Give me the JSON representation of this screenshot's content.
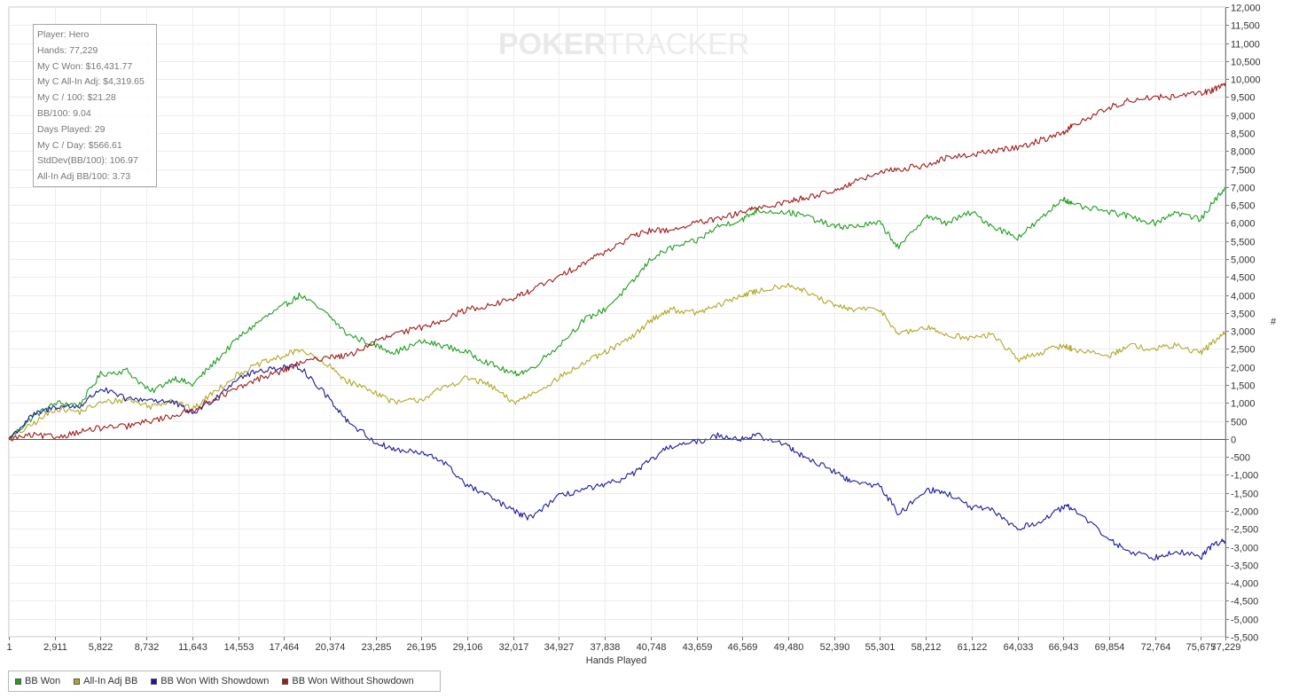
{
  "stats": [
    "Player: Hero",
    "Hands: 77,229",
    "My C Won: $16,431.77",
    "My C All-In Adj: $4,319.65",
    "My C / 100: $21.28",
    "BB/100: 9.04",
    "Days Played: 29",
    "My C / Day: $566.61",
    "StdDev(BB/100): 106.97",
    "All-In Adj BB/100: 3.73"
  ],
  "watermark": {
    "bold": "POKER",
    "light": "TRACKER"
  },
  "chart_data": {
    "type": "line",
    "title": "",
    "xlabel": "Hands Played",
    "ylabel": "#",
    "xlim": [
      1,
      77229
    ],
    "ylim": [
      -5500,
      12000
    ],
    "grid": true,
    "legend_placement": "bottom-left",
    "x_ticks": [
      1,
      2911,
      5822,
      8732,
      11643,
      14553,
      17464,
      20374,
      23285,
      26195,
      29106,
      32017,
      34927,
      37838,
      40748,
      43659,
      46569,
      49480,
      52390,
      55301,
      58212,
      61122,
      64033,
      66943,
      69854,
      72764,
      75675,
      77229
    ],
    "x_tick_labels": [
      "1",
      "2,911",
      "5,822",
      "8,732",
      "11,643",
      "14,553",
      "17,464",
      "20,374",
      "23,285",
      "26,195",
      "29,106",
      "32,017",
      "34,927",
      "37,838",
      "40,748",
      "43,659",
      "46,569",
      "49,480",
      "52,390",
      "55,301",
      "58,212",
      "61,122",
      "64,033",
      "66,943",
      "69,854",
      "72,764",
      "75,675",
      "77,229"
    ],
    "y_ticks": [
      12000,
      11500,
      11000,
      10500,
      10000,
      9500,
      9000,
      8500,
      8000,
      7500,
      7000,
      6500,
      6000,
      5500,
      5000,
      4500,
      4000,
      3500,
      3000,
      2500,
      2000,
      1500,
      1000,
      500,
      0,
      -500,
      -1000,
      -1500,
      -2000,
      -2500,
      -3000,
      -3500,
      -4000,
      -4500,
      -5000,
      -5500
    ],
    "y_tick_labels": [
      "12,000",
      "11,500",
      "11,000",
      "10,500",
      "10,000",
      "9,500",
      "9,000",
      "8,500",
      "8,000",
      "7,500",
      "7,000",
      "6,500",
      "6,000",
      "5,500",
      "5,000",
      "4,500",
      "4,000",
      "3,500",
      "3,000",
      "2,500",
      "2,000",
      "1,500",
      "1,000",
      "500",
      "0",
      "-500",
      "-1,000",
      "-1,500",
      "-2,000",
      "-2,500",
      "-3,000",
      "-3,500",
      "-4,000",
      "-4,500",
      "-5,000",
      "-5,500"
    ],
    "series": [
      {
        "name": "BB Won",
        "color": "#1f9e1f",
        "points": [
          [
            1,
            0
          ],
          [
            1500,
            600
          ],
          [
            3000,
            1000
          ],
          [
            4500,
            950
          ],
          [
            5822,
            1800
          ],
          [
            7500,
            1900
          ],
          [
            9000,
            1300
          ],
          [
            10500,
            1700
          ],
          [
            11643,
            1500
          ],
          [
            13000,
            2100
          ],
          [
            14553,
            2800
          ],
          [
            16000,
            3300
          ],
          [
            17464,
            3700
          ],
          [
            18500,
            4000
          ],
          [
            20374,
            3400
          ],
          [
            21500,
            2900
          ],
          [
            23285,
            2600
          ],
          [
            24500,
            2400
          ],
          [
            26195,
            2700
          ],
          [
            27500,
            2600
          ],
          [
            29106,
            2400
          ],
          [
            30500,
            2100
          ],
          [
            32017,
            1800
          ],
          [
            33000,
            1900
          ],
          [
            34927,
            2600
          ],
          [
            36500,
            3300
          ],
          [
            37838,
            3600
          ],
          [
            39500,
            4300
          ],
          [
            40748,
            5000
          ],
          [
            42000,
            5300
          ],
          [
            43659,
            5500
          ],
          [
            45000,
            5900
          ],
          [
            46569,
            6100
          ],
          [
            47500,
            6350
          ],
          [
            49480,
            6300
          ],
          [
            50500,
            6200
          ],
          [
            52390,
            5900
          ],
          [
            53500,
            5900
          ],
          [
            55301,
            6000
          ],
          [
            56500,
            5300
          ],
          [
            58212,
            6200
          ],
          [
            59500,
            6000
          ],
          [
            61122,
            6300
          ],
          [
            62500,
            5900
          ],
          [
            64033,
            5600
          ],
          [
            65500,
            6100
          ],
          [
            66943,
            6700
          ],
          [
            67500,
            6500
          ],
          [
            69854,
            6300
          ],
          [
            71000,
            6200
          ],
          [
            72764,
            6000
          ],
          [
            74000,
            6300
          ],
          [
            75675,
            6100
          ],
          [
            76500,
            6600
          ],
          [
            77229,
            7000
          ]
        ]
      },
      {
        "name": "All-In Adj BB",
        "color": "#b0a82a",
        "points": [
          [
            1,
            0
          ],
          [
            1500,
            400
          ],
          [
            3000,
            850
          ],
          [
            4500,
            750
          ],
          [
            5822,
            1000
          ],
          [
            7500,
            1100
          ],
          [
            9000,
            900
          ],
          [
            10500,
            1100
          ],
          [
            11643,
            800
          ],
          [
            13000,
            1300
          ],
          [
            14553,
            1800
          ],
          [
            16000,
            2100
          ],
          [
            17464,
            2300
          ],
          [
            18500,
            2500
          ],
          [
            20374,
            2000
          ],
          [
            21500,
            1600
          ],
          [
            23285,
            1300
          ],
          [
            24500,
            1000
          ],
          [
            26195,
            1100
          ],
          [
            27500,
            1400
          ],
          [
            29106,
            1700
          ],
          [
            30500,
            1500
          ],
          [
            32017,
            1000
          ],
          [
            33000,
            1200
          ],
          [
            34927,
            1700
          ],
          [
            36500,
            2100
          ],
          [
            37838,
            2400
          ],
          [
            39500,
            2800
          ],
          [
            40748,
            3300
          ],
          [
            42000,
            3600
          ],
          [
            43659,
            3500
          ],
          [
            45000,
            3700
          ],
          [
            46569,
            4000
          ],
          [
            47500,
            4100
          ],
          [
            49480,
            4300
          ],
          [
            50500,
            4100
          ],
          [
            52390,
            3700
          ],
          [
            53500,
            3600
          ],
          [
            55301,
            3600
          ],
          [
            56500,
            2900
          ],
          [
            58212,
            3100
          ],
          [
            59500,
            2900
          ],
          [
            61122,
            2800
          ],
          [
            62500,
            2900
          ],
          [
            64033,
            2200
          ],
          [
            65500,
            2400
          ],
          [
            66943,
            2600
          ],
          [
            67500,
            2500
          ],
          [
            69854,
            2300
          ],
          [
            71000,
            2600
          ],
          [
            72764,
            2500
          ],
          [
            74000,
            2600
          ],
          [
            75675,
            2400
          ],
          [
            76500,
            2700
          ],
          [
            77229,
            2950
          ]
        ]
      },
      {
        "name": "BB Won With Showdown",
        "color": "#1b1b9a",
        "points": [
          [
            1,
            0
          ],
          [
            1500,
            650
          ],
          [
            3000,
            900
          ],
          [
            4500,
            900
          ],
          [
            5822,
            1400
          ],
          [
            7500,
            1100
          ],
          [
            9000,
            1100
          ],
          [
            10500,
            1000
          ],
          [
            11643,
            700
          ],
          [
            13000,
            1100
          ],
          [
            14553,
            1700
          ],
          [
            16000,
            1900
          ],
          [
            17464,
            2000
          ],
          [
            18500,
            2000
          ],
          [
            20374,
            1100
          ],
          [
            21500,
            500
          ],
          [
            23285,
            -100
          ],
          [
            24500,
            -300
          ],
          [
            26195,
            -400
          ],
          [
            27500,
            -600
          ],
          [
            29106,
            -1300
          ],
          [
            30500,
            -1600
          ],
          [
            32017,
            -2000
          ],
          [
            33000,
            -2200
          ],
          [
            34927,
            -1600
          ],
          [
            36500,
            -1400
          ],
          [
            37838,
            -1300
          ],
          [
            39500,
            -1000
          ],
          [
            40748,
            -600
          ],
          [
            42000,
            -200
          ],
          [
            43659,
            -100
          ],
          [
            45000,
            100
          ],
          [
            46569,
            0
          ],
          [
            47500,
            100
          ],
          [
            49480,
            -200
          ],
          [
            50500,
            -500
          ],
          [
            52390,
            -900
          ],
          [
            53500,
            -1200
          ],
          [
            55301,
            -1300
          ],
          [
            56500,
            -2100
          ],
          [
            58212,
            -1400
          ],
          [
            59500,
            -1500
          ],
          [
            61122,
            -1900
          ],
          [
            62500,
            -2000
          ],
          [
            64033,
            -2500
          ],
          [
            65500,
            -2300
          ],
          [
            66943,
            -1900
          ],
          [
            67500,
            -1900
          ],
          [
            69854,
            -2800
          ],
          [
            71000,
            -3100
          ],
          [
            72764,
            -3300
          ],
          [
            74000,
            -3100
          ],
          [
            75675,
            -3300
          ],
          [
            76500,
            -2900
          ],
          [
            77229,
            -2850
          ]
        ]
      },
      {
        "name": "BB Won Without Showdown",
        "color": "#a01c1c",
        "points": [
          [
            1,
            0
          ],
          [
            1500,
            100
          ],
          [
            3000,
            50
          ],
          [
            4500,
            200
          ],
          [
            5822,
            300
          ],
          [
            7500,
            350
          ],
          [
            9000,
            500
          ],
          [
            10500,
            650
          ],
          [
            11643,
            800
          ],
          [
            13000,
            1100
          ],
          [
            14553,
            1400
          ],
          [
            16000,
            1700
          ],
          [
            17464,
            1900
          ],
          [
            18500,
            2100
          ],
          [
            20374,
            2300
          ],
          [
            21500,
            2300
          ],
          [
            23285,
            2700
          ],
          [
            24500,
            2900
          ],
          [
            26195,
            3100
          ],
          [
            27500,
            3300
          ],
          [
            29106,
            3600
          ],
          [
            30500,
            3700
          ],
          [
            32017,
            3900
          ],
          [
            33000,
            4100
          ],
          [
            34927,
            4500
          ],
          [
            36500,
            4900
          ],
          [
            37838,
            5200
          ],
          [
            39500,
            5600
          ],
          [
            40748,
            5800
          ],
          [
            42000,
            5800
          ],
          [
            43659,
            6000
          ],
          [
            45000,
            6100
          ],
          [
            46569,
            6300
          ],
          [
            47500,
            6400
          ],
          [
            49480,
            6600
          ],
          [
            50500,
            6700
          ],
          [
            52390,
            6900
          ],
          [
            53500,
            7100
          ],
          [
            55301,
            7400
          ],
          [
            56500,
            7500
          ],
          [
            58212,
            7600
          ],
          [
            59500,
            7800
          ],
          [
            61122,
            7900
          ],
          [
            62500,
            8000
          ],
          [
            64033,
            8100
          ],
          [
            65500,
            8300
          ],
          [
            66943,
            8500
          ],
          [
            67500,
            8700
          ],
          [
            69854,
            9200
          ],
          [
            71000,
            9400
          ],
          [
            72764,
            9500
          ],
          [
            74000,
            9500
          ],
          [
            75675,
            9600
          ],
          [
            76500,
            9700
          ],
          [
            77229,
            9900
          ]
        ]
      }
    ]
  }
}
